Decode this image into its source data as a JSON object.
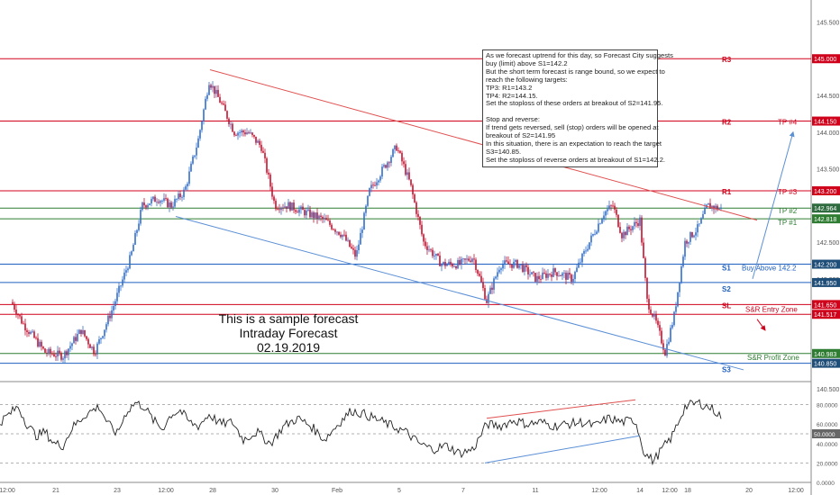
{
  "colors": {
    "candle_up": "#2f6fce",
    "candle_down": "#c8102e",
    "resistance": "#d0021b",
    "support": "#1f5fbf",
    "green": "#2e7d32",
    "trend_red": "#e05050",
    "trend_blue": "#5b8fd6",
    "axis_text": "#555555",
    "price_tag_dark": "#1f4e79"
  },
  "note_lines": [
    "As we forecast uptrend for this day, so Forecast City suggests",
    "buy (limit) above S1=142.2",
    "But the short term forecast is range bound, so we expect to",
    "reach the following targets:",
    "TP3: R1=143.2",
    "TP4: R2=144.15.",
    "Set the stoploss of these orders at breakout of S2=141.95.",
    "",
    "Stop and reverse:",
    "If trend gets reversed, sell (stop) orders will be opened at",
    "breakout of S2=141.95",
    "In this situation, there is an expectation to reach the target",
    "S3=140.85.",
    "Set the stoploss of reverse orders at breakout of S1=142.2."
  ],
  "sample_lines": [
    "This is a sample forecast",
    "Intraday Forecast",
    "02.19.2019"
  ],
  "chart_data": [
    {
      "type": "candlestick",
      "ylim": [
        140.6,
        145.8
      ],
      "y_ticks": [
        "145.500",
        "145.000",
        "144.500",
        "144.000",
        "143.500",
        "143.000",
        "142.500",
        "142.000",
        "141.500",
        "141.000",
        "140.500"
      ],
      "x_ticks": [
        "12:00",
        "21",
        "23",
        "12:00",
        "28",
        "30",
        "Feb",
        "5",
        "7",
        "11",
        "12:00",
        "14",
        "12:00",
        "18",
        "20",
        "12:00"
      ],
      "levels": [
        {
          "label": "R3",
          "value": 145.0,
          "price_tag": "145.000",
          "kind": "resistance"
        },
        {
          "label": "R2",
          "value": 144.15,
          "price_tag": "144.150",
          "kind": "resistance",
          "side_label": "TP #4"
        },
        {
          "label": "R1",
          "value": 143.2,
          "price_tag": "143.200",
          "kind": "resistance",
          "side_label": "TP #3"
        },
        {
          "label": "",
          "value": 142.964,
          "price_tag": "142.964",
          "kind": "current",
          "side_label": "TP #2"
        },
        {
          "label": "",
          "value": 142.818,
          "price_tag": "142.818",
          "kind": "green",
          "side_label": "TP #1"
        },
        {
          "label": "S1",
          "value": 142.2,
          "price_tag": "142.200",
          "kind": "support",
          "side_label": "Buy Above 142.2"
        },
        {
          "label": "S2",
          "value": 141.95,
          "price_tag": "141.950",
          "kind": "support"
        },
        {
          "label": "SL",
          "value": 141.65,
          "price_tag": "141.650",
          "kind": "resistance",
          "side_label": "S&R Entry Zone"
        },
        {
          "label": "",
          "value": 141.517,
          "price_tag": "141.517",
          "kind": "resistance"
        },
        {
          "label": "",
          "value": 140.983,
          "price_tag": "140.983",
          "kind": "green",
          "side_label": "S&R Profit Zone"
        },
        {
          "label": "S3",
          "value": 140.85,
          "price_tag": "140.850",
          "kind": "support"
        }
      ],
      "path_anchors": [
        [
          0,
          140.7
        ],
        [
          8,
          141.8
        ],
        [
          25,
          141.4
        ],
        [
          50,
          141.0
        ],
        [
          70,
          140.95
        ],
        [
          90,
          141.3
        ],
        [
          105,
          141.0
        ],
        [
          125,
          141.6
        ],
        [
          145,
          142.3
        ],
        [
          158,
          143.0
        ],
        [
          175,
          143.1
        ],
        [
          190,
          143.0
        ],
        [
          205,
          143.2
        ],
        [
          220,
          143.9
        ],
        [
          232,
          144.7
        ],
        [
          245,
          144.4
        ],
        [
          260,
          144.0
        ],
        [
          275,
          144.0
        ],
        [
          290,
          143.8
        ],
        [
          305,
          143.0
        ],
        [
          320,
          143.0
        ],
        [
          340,
          142.9
        ],
        [
          360,
          142.8
        ],
        [
          380,
          142.6
        ],
        [
          395,
          142.3
        ],
        [
          410,
          143.2
        ],
        [
          425,
          143.5
        ],
        [
          440,
          143.8
        ],
        [
          455,
          143.3
        ],
        [
          470,
          142.5
        ],
        [
          490,
          142.2
        ],
        [
          510,
          142.2
        ],
        [
          525,
          142.3
        ],
        [
          540,
          141.7
        ],
        [
          555,
          142.2
        ],
        [
          575,
          142.2
        ],
        [
          595,
          142.0
        ],
        [
          615,
          142.1
        ],
        [
          635,
          142.0
        ],
        [
          650,
          142.4
        ],
        [
          670,
          142.9
        ],
        [
          680,
          143.0
        ],
        [
          690,
          142.6
        ],
        [
          700,
          142.7
        ],
        [
          710,
          142.8
        ],
        [
          718,
          141.7
        ],
        [
          728,
          141.4
        ],
        [
          738,
          141.0
        ],
        [
          748,
          141.5
        ],
        [
          760,
          142.5
        ],
        [
          775,
          142.7
        ],
        [
          785,
          143.0
        ],
        [
          800,
          142.95
        ]
      ],
      "trendlines": [
        {
          "color": "trend_red",
          "from": [
            233,
            144.85
          ],
          "to": [
            840,
            142.8
          ]
        },
        {
          "color": "trend_blue",
          "from": [
            195,
            142.85
          ],
          "to": [
            825,
            140.76
          ]
        }
      ],
      "arrows": [
        {
          "color": "trend_blue",
          "from": [
            835,
            142.0
          ],
          "to": [
            880,
            144.0
          ]
        },
        {
          "color": "resistance",
          "from": [
            840,
            141.45
          ],
          "to": [
            849,
            141.3
          ]
        }
      ]
    },
    {
      "type": "line",
      "name": "oscillator",
      "ylim": [
        0,
        100
      ],
      "y_ticks": [
        "80.0000",
        "60.0000",
        "50.0000",
        "40.0000",
        "20.0000",
        "0.0000"
      ],
      "current_tag": "50.0000",
      "path_anchors": [
        [
          0,
          62
        ],
        [
          10,
          70
        ],
        [
          20,
          78
        ],
        [
          30,
          60
        ],
        [
          40,
          48
        ],
        [
          50,
          52
        ],
        [
          60,
          40
        ],
        [
          70,
          38
        ],
        [
          80,
          56
        ],
        [
          95,
          70
        ],
        [
          110,
          78
        ],
        [
          120,
          60
        ],
        [
          130,
          50
        ],
        [
          140,
          72
        ],
        [
          150,
          82
        ],
        [
          160,
          78
        ],
        [
          170,
          64
        ],
        [
          180,
          55
        ],
        [
          190,
          70
        ],
        [
          200,
          74
        ],
        [
          210,
          62
        ],
        [
          220,
          58
        ],
        [
          232,
          70
        ],
        [
          245,
          60
        ],
        [
          258,
          62
        ],
        [
          270,
          44
        ],
        [
          285,
          52
        ],
        [
          300,
          40
        ],
        [
          315,
          58
        ],
        [
          330,
          66
        ],
        [
          345,
          58
        ],
        [
          360,
          44
        ],
        [
          375,
          60
        ],
        [
          390,
          74
        ],
        [
          405,
          70
        ],
        [
          420,
          64
        ],
        [
          435,
          58
        ],
        [
          450,
          52
        ],
        [
          465,
          40
        ],
        [
          480,
          34
        ],
        [
          495,
          38
        ],
        [
          510,
          30
        ],
        [
          525,
          34
        ],
        [
          540,
          60
        ],
        [
          555,
          58
        ],
        [
          570,
          64
        ],
        [
          585,
          60
        ],
        [
          600,
          62
        ],
        [
          615,
          58
        ],
        [
          630,
          60
        ],
        [
          645,
          62
        ],
        [
          660,
          58
        ],
        [
          675,
          66
        ],
        [
          690,
          62
        ],
        [
          705,
          64
        ],
        [
          715,
          30
        ],
        [
          725,
          22
        ],
        [
          735,
          35
        ],
        [
          745,
          46
        ],
        [
          760,
          78
        ],
        [
          775,
          82
        ],
        [
          790,
          76
        ],
        [
          800,
          68
        ]
      ],
      "trendlines": [
        {
          "color": "trend_red",
          "from": [
            540,
            66
          ],
          "to": [
            705,
            85
          ]
        },
        {
          "color": "trend_blue",
          "from": [
            538,
            20
          ],
          "to": [
            710,
            48
          ]
        }
      ]
    }
  ]
}
